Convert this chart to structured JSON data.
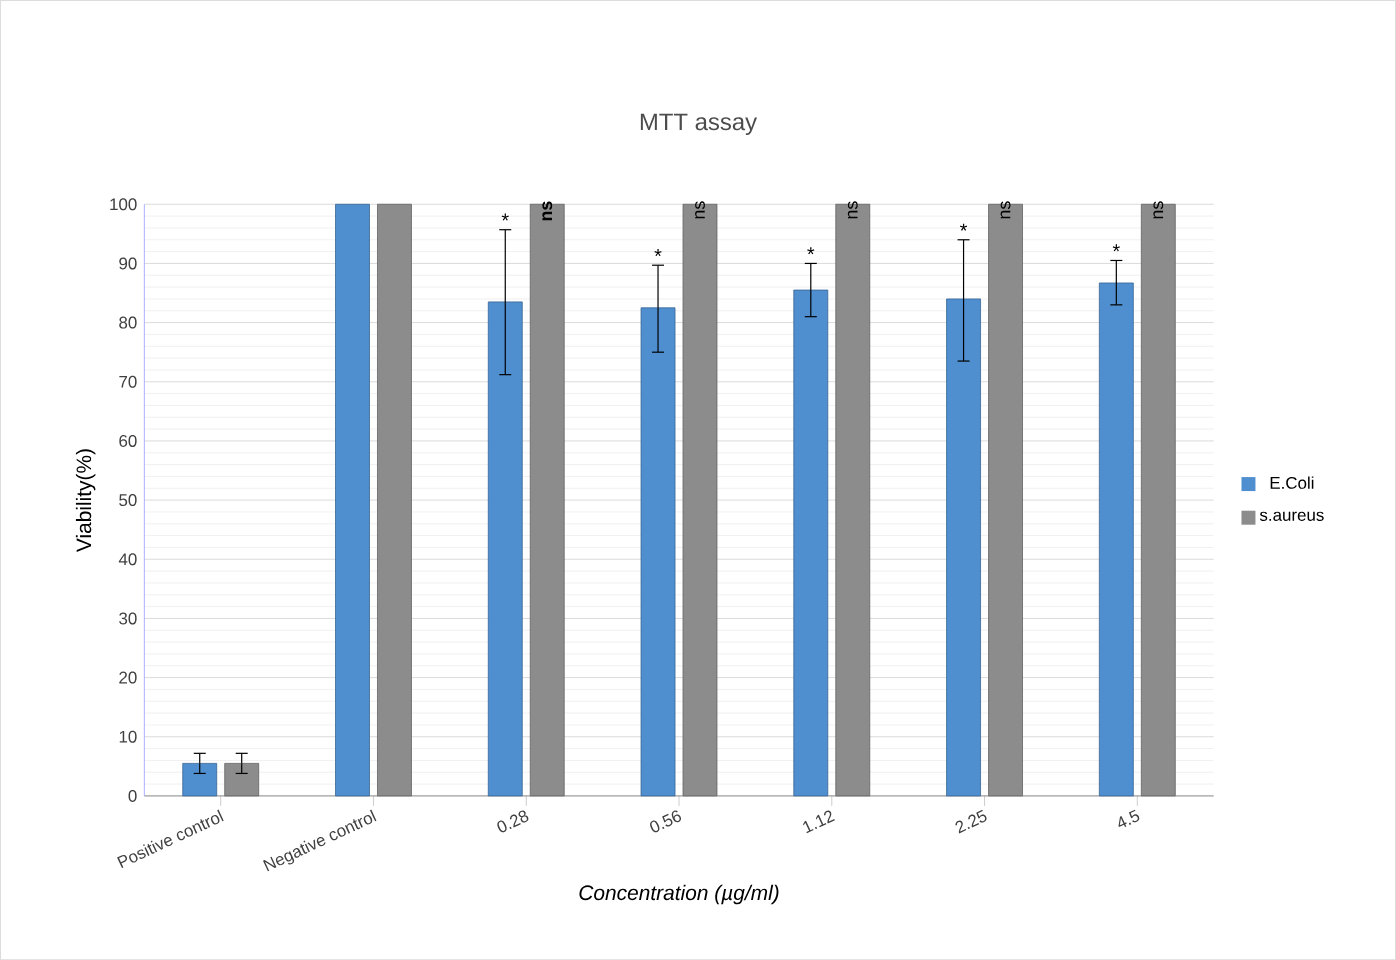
{
  "chart_data": {
    "type": "bar",
    "title": "MTT assay",
    "xlabel": "*Concentration (µg/ml)*",
    "ylabel": "Viability(%)",
    "categories": [
      "Positive control",
      "Negative control",
      "0.28",
      "0.56",
      "1.12",
      "2.25",
      "4.5"
    ],
    "series": [
      {
        "name": "E.Coli",
        "color": "#4f8fd0",
        "values": [
          5.5,
          100,
          83.5,
          82.5,
          85.5,
          84,
          86.7
        ],
        "errors": [
          1.7,
          null,
          [
            71.2,
            95.7
          ],
          [
            75,
            89.7
          ],
          [
            81,
            90
          ],
          [
            73.5,
            94
          ],
          [
            83,
            90.5
          ]
        ]
      },
      {
        "name": "s.aureus",
        "color": "#8c8c8c",
        "values": [
          5.5,
          100,
          100,
          100,
          100,
          100,
          100
        ],
        "errors": [
          1.7,
          null,
          null,
          null,
          null,
          null,
          null
        ]
      }
    ],
    "ylim": [
      0,
      100
    ],
    "yticks": [
      0,
      10,
      20,
      30,
      40,
      50,
      60,
      70,
      80,
      90,
      100
    ],
    "grid": "y",
    "legend": "right",
    "annotations": [
      {
        "text": "*",
        "x": "0.28",
        "y": 95.7
      },
      {
        "text": "**ns**",
        "x": "0.28",
        "y": 100
      },
      {
        "text": "*",
        "x": "0.56",
        "y": 89.7
      },
      {
        "text": "ns",
        "x": "0.56",
        "y": 100
      },
      {
        "text": "*",
        "x": "1.12",
        "y": 90
      },
      {
        "text": "ns",
        "x": "1.12",
        "y": 100
      },
      {
        "text": "*",
        "x": "2.25",
        "y": 94
      },
      {
        "text": "ns",
        "x": "2.25",
        "y": 100
      },
      {
        "text": "*",
        "x": "4.5",
        "y": 90.5
      },
      {
        "text": "ns",
        "x": "4.5",
        "y": 100
      }
    ]
  }
}
